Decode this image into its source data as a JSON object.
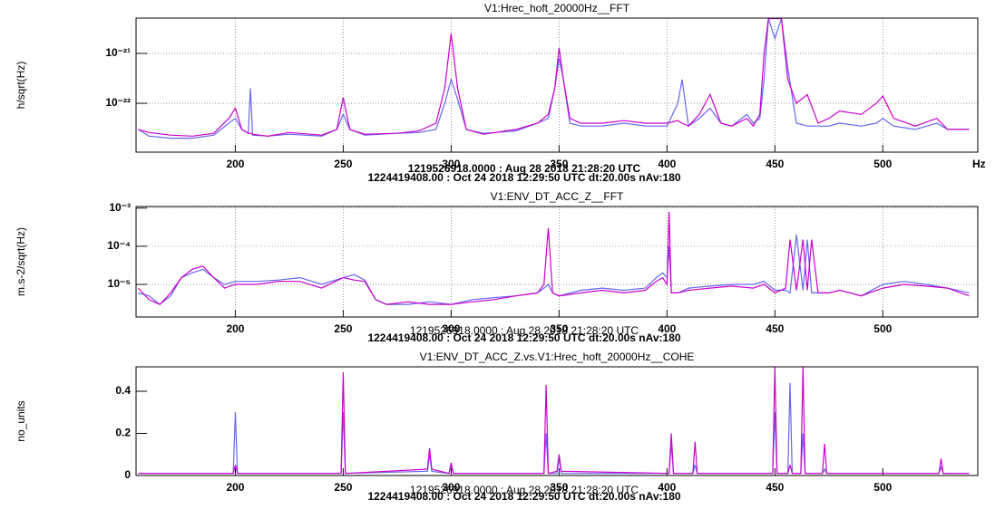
{
  "chart_data": [
    {
      "type": "line",
      "title": "V1:Hrec_hoft_20000Hz__FFT",
      "ylabel": "h/sqrt(Hz)",
      "xlabel": "Hz",
      "log_y": true,
      "grid": true,
      "xlim": [
        154,
        544
      ],
      "xticks": [
        200,
        250,
        300,
        350,
        400,
        450,
        500
      ],
      "ylim": [
        1.05e-23,
        5.1e-21
      ],
      "yticks": [
        {
          "value": 1e-21,
          "label": "10⁻²¹"
        },
        {
          "value": 1e-22,
          "label": "10⁻²²"
        }
      ],
      "annotations": [
        {
          "text": "1219526918.0000 : Aug 28 2018 21:28:20 UTC",
          "color": "#cc00cc"
        },
        {
          "text": "1224419408.00 : Oct 24 2018 12:29:50 UTC dt:20.00s nAv:180",
          "color": "#000000"
        }
      ],
      "x": [
        155,
        160,
        170,
        180,
        190,
        197,
        200,
        203,
        206,
        207,
        208,
        215,
        225,
        240,
        247,
        250,
        253,
        260,
        275,
        285,
        293,
        297,
        300,
        303,
        307,
        315,
        330,
        340,
        345,
        348,
        350,
        352,
        355,
        360,
        370,
        380,
        390,
        400,
        405,
        407,
        410,
        415,
        420,
        425,
        430,
        437,
        440,
        443,
        445,
        447,
        450,
        453,
        456,
        460,
        465,
        470,
        475,
        480,
        490,
        497,
        500,
        505,
        515,
        525,
        530,
        540
      ],
      "series": [
        {
          "color": "#6666ee",
          "values": [
            3e-23,
            2.2e-23,
            2e-23,
            2e-23,
            2.3e-23,
            4e-23,
            5e-23,
            3e-23,
            2.5e-23,
            2e-22,
            2.3e-23,
            2.2e-23,
            2.4e-23,
            2.2e-23,
            3e-23,
            6e-23,
            3e-23,
            2.3e-23,
            2.5e-23,
            2.6e-23,
            3e-23,
            1e-22,
            3e-22,
            1.2e-22,
            3e-23,
            2.5e-23,
            2.8e-23,
            4e-23,
            5e-23,
            2e-22,
            8e-22,
            3e-22,
            4e-23,
            3.5e-23,
            3.5e-23,
            4e-23,
            3.5e-23,
            3.5e-23,
            1e-22,
            3e-22,
            3.5e-23,
            5e-23,
            8e-23,
            4e-23,
            3.5e-23,
            6e-23,
            4e-23,
            5e-23,
            3e-22,
            5e-21,
            2e-21,
            5e-21,
            5e-22,
            4e-23,
            3.5e-23,
            3.5e-23,
            3.5e-23,
            4e-23,
            3.5e-23,
            4e-23,
            5e-23,
            3.5e-23,
            3e-23,
            4e-23,
            3e-23,
            3e-23
          ]
        },
        {
          "color": "#cc00cc",
          "values": [
            3e-23,
            2.6e-23,
            2.3e-23,
            2.2e-23,
            2.5e-23,
            5e-23,
            8e-23,
            3e-23,
            2.5e-23,
            2.5e-23,
            2.4e-23,
            2.2e-23,
            2.6e-23,
            2.3e-23,
            3e-23,
            1.3e-22,
            3e-23,
            2.4e-23,
            2.5e-23,
            2.8e-23,
            4e-23,
            2e-22,
            2.5e-21,
            2e-22,
            3e-23,
            2.4e-23,
            3e-23,
            4e-23,
            6e-23,
            2e-22,
            1.3e-21,
            3e-22,
            5e-23,
            4e-23,
            4e-23,
            4.5e-23,
            4e-23,
            4e-23,
            4.5e-23,
            4e-23,
            3.5e-23,
            6e-23,
            1.5e-22,
            4e-23,
            3.5e-23,
            5e-23,
            3.5e-23,
            6e-23,
            1e-21,
            5e-21,
            5e-21,
            5e-21,
            3e-22,
            1e-22,
            1.5e-22,
            4e-23,
            5e-23,
            7e-23,
            6e-23,
            1e-22,
            1.4e-22,
            5e-23,
            3.5e-23,
            5e-23,
            3e-23,
            3e-23
          ]
        }
      ]
    },
    {
      "type": "line",
      "title": "V1:ENV_DT_ACC_Z__FFT",
      "ylabel": "m.s-2/sqrt(Hz)",
      "log_y": true,
      "grid": true,
      "xlim": [
        154,
        544
      ],
      "xticks": [
        200,
        250,
        300,
        350,
        400,
        450,
        500
      ],
      "ylim": [
        1.4e-06,
        0.0011
      ],
      "yticks": [
        {
          "value": 0.001,
          "label": "10⁻³"
        },
        {
          "value": 0.0001,
          "label": "10⁻⁴"
        },
        {
          "value": 1e-05,
          "label": "10⁻⁵"
        }
      ],
      "annotations": [
        {
          "text": "1219526918.0000 : Aug 28 2018 21:28:20 UTC",
          "color": "#cc00cc"
        },
        {
          "text": "1224419408.00 : Oct 24 2018 12:29:50 UTC dt:20.00s nAv:180",
          "color": "#000000"
        }
      ],
      "x": [
        155,
        160,
        165,
        170,
        175,
        180,
        185,
        190,
        195,
        200,
        210,
        220,
        230,
        240,
        250,
        255,
        260,
        265,
        270,
        280,
        290,
        300,
        310,
        320,
        330,
        340,
        343,
        345,
        347,
        350,
        360,
        370,
        380,
        390,
        395,
        398,
        400,
        401,
        402,
        405,
        410,
        420,
        430,
        440,
        445,
        450,
        455,
        457,
        460,
        463,
        465,
        467,
        470,
        475,
        480,
        485,
        490,
        500,
        510,
        520,
        530,
        540
      ],
      "series": [
        {
          "color": "#6666ee",
          "values": [
            6e-06,
            5e-06,
            3e-06,
            5e-06,
            1.5e-05,
            2e-05,
            2.5e-05,
            1.5e-05,
            1e-05,
            1.2e-05,
            1.2e-05,
            1.3e-05,
            1.5e-05,
            1e-05,
            1.5e-05,
            1.8e-05,
            1.3e-05,
            4e-06,
            3e-06,
            3e-06,
            3.5e-06,
            3e-06,
            4e-06,
            4.5e-06,
            5e-06,
            6e-06,
            8e-06,
            1e-05,
            6e-06,
            5e-06,
            7e-06,
            8e-06,
            7e-06,
            8e-06,
            1.5e-05,
            2e-05,
            1.5e-05,
            0.0001,
            6e-06,
            6e-06,
            8e-06,
            9e-06,
            1e-05,
            1e-05,
            1.2e-05,
            7e-06,
            7e-06,
            6e-06,
            0.0002,
            7e-06,
            0.00015,
            6e-06,
            6e-06,
            6e-06,
            7e-06,
            6e-06,
            5e-06,
            1e-05,
            1.2e-05,
            1e-05,
            8e-06,
            6e-06
          ]
        },
        {
          "color": "#cc00cc",
          "values": [
            8e-06,
            4e-06,
            3e-06,
            6e-06,
            1.5e-05,
            2.5e-05,
            3e-05,
            1.5e-05,
            8e-06,
            1e-05,
            1e-05,
            1.2e-05,
            1.2e-05,
            8e-06,
            1.5e-05,
            1.3e-05,
            1.2e-05,
            4e-06,
            3e-06,
            3.5e-06,
            3e-06,
            3e-06,
            3.5e-06,
            4e-06,
            5e-06,
            6e-06,
            1e-05,
            0.0003,
            6e-06,
            5e-06,
            6e-06,
            7e-06,
            6e-06,
            7e-06,
            1.2e-05,
            1.5e-05,
            1e-05,
            0.0008,
            6e-06,
            6e-06,
            7e-06,
            8e-06,
            9e-06,
            8e-06,
            1e-05,
            6e-06,
            8e-06,
            0.00015,
            7e-06,
            0.00015,
            7e-06,
            0.00015,
            6e-06,
            6e-06,
            7e-06,
            6e-06,
            5e-06,
            8e-06,
            1e-05,
            9e-06,
            8e-06,
            5e-06
          ]
        }
      ]
    },
    {
      "type": "line",
      "title": "V1:ENV_DT_ACC_Z.vs.V1:Hrec_hoft_20000Hz__COHE",
      "ylabel": "no_units",
      "log_y": false,
      "grid": false,
      "xlim": [
        154,
        544
      ],
      "xticks": [
        200,
        250,
        300,
        350,
        400,
        450,
        500
      ],
      "ylim": [
        0,
        0.516
      ],
      "yticks": [
        0,
        0.2,
        0.4
      ],
      "annotations": [
        {
          "text": "1219526918.0000 : Aug 28 2018 21:28:20 UTC",
          "color": "#cc00cc"
        },
        {
          "text": "1224419408.00 : Oct 24 2018 12:29:50 UTC dt:20.00s nAv:180",
          "color": "#000000"
        }
      ],
      "x": [
        155,
        199,
        200,
        201,
        249,
        250,
        251,
        289,
        290,
        291,
        299,
        300,
        301,
        343,
        344,
        345,
        349,
        350,
        351,
        401,
        402,
        403,
        412,
        413,
        414,
        449,
        450,
        451,
        456,
        457,
        458,
        462,
        463,
        464,
        472,
        473,
        474,
        526,
        527,
        528,
        540
      ],
      "series": [
        {
          "color": "#6666ee",
          "values": [
            0.01,
            0.01,
            0.3,
            0.01,
            0.01,
            0.3,
            0.01,
            0.02,
            0.1,
            0.02,
            0.01,
            0.05,
            0.01,
            0.01,
            0.2,
            0.01,
            0.01,
            0.08,
            0.01,
            0.01,
            0.15,
            0.01,
            0.01,
            0.05,
            0.01,
            0.01,
            0.3,
            0.01,
            0.01,
            0.44,
            0.01,
            0.01,
            0.2,
            0.01,
            0.01,
            0.03,
            0.01,
            0.01,
            0.04,
            0.01,
            0.01
          ]
        },
        {
          "color": "#cc00cc",
          "values": [
            0.01,
            0.01,
            0.05,
            0.01,
            0.01,
            0.49,
            0.01,
            0.03,
            0.13,
            0.03,
            0.01,
            0.06,
            0.01,
            0.01,
            0.43,
            0.01,
            0.02,
            0.1,
            0.02,
            0.01,
            0.2,
            0.01,
            0.01,
            0.16,
            0.01,
            0.01,
            0.52,
            0.01,
            0.01,
            0.05,
            0.01,
            0.01,
            0.52,
            0.01,
            0.01,
            0.15,
            0.01,
            0.01,
            0.08,
            0.01,
            0.01
          ]
        }
      ]
    }
  ]
}
